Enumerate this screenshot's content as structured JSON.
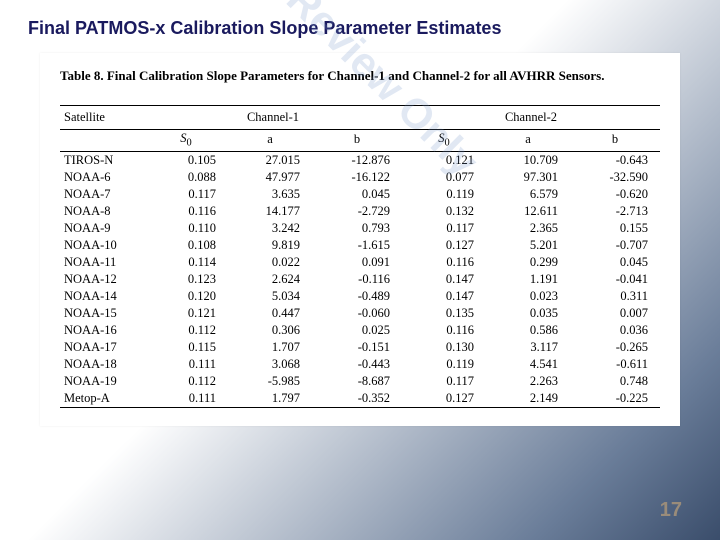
{
  "slide": {
    "title": "Final PATMOS-x Calibration Slope Parameter Estimates",
    "page_number": "17"
  },
  "watermark": {
    "text": "Peer Review Only"
  },
  "table": {
    "caption": "Table 8.  Final Calibration Slope Parameters for Channel-1 and Channel-2 for all AVHRR Sensors.",
    "header": {
      "satellite": "Satellite",
      "channel1": "Channel-1",
      "channel2": "Channel-2",
      "s0": "S",
      "s0_sub": "0",
      "a": "a",
      "b": "b"
    },
    "col_widths": [
      "14%",
      "14%",
      "14%",
      "15%",
      "14%",
      "14%",
      "15%"
    ],
    "rows": [
      {
        "sat": "TIROS-N",
        "c1": {
          "s0": "0.105",
          "a": "27.015",
          "b": "-12.876"
        },
        "c2": {
          "s0": "0.121",
          "a": "10.709",
          "b": "-0.643"
        }
      },
      {
        "sat": "NOAA-6",
        "c1": {
          "s0": "0.088",
          "a": "47.977",
          "b": "-16.122"
        },
        "c2": {
          "s0": "0.077",
          "a": "97.301",
          "b": "-32.590"
        }
      },
      {
        "sat": "NOAA-7",
        "c1": {
          "s0": "0.117",
          "a": "3.635",
          "b": "0.045"
        },
        "c2": {
          "s0": "0.119",
          "a": "6.579",
          "b": "-0.620"
        }
      },
      {
        "sat": "NOAA-8",
        "c1": {
          "s0": "0.116",
          "a": "14.177",
          "b": "-2.729"
        },
        "c2": {
          "s0": "0.132",
          "a": "12.611",
          "b": "-2.713"
        }
      },
      {
        "sat": "NOAA-9",
        "c1": {
          "s0": "0.110",
          "a": "3.242",
          "b": "0.793"
        },
        "c2": {
          "s0": "0.117",
          "a": "2.365",
          "b": "0.155"
        }
      },
      {
        "sat": "NOAA-10",
        "c1": {
          "s0": "0.108",
          "a": "9.819",
          "b": "-1.615"
        },
        "c2": {
          "s0": "0.127",
          "a": "5.201",
          "b": "-0.707"
        }
      },
      {
        "sat": "NOAA-11",
        "c1": {
          "s0": "0.114",
          "a": "0.022",
          "b": "0.091"
        },
        "c2": {
          "s0": "0.116",
          "a": "0.299",
          "b": "0.045"
        }
      },
      {
        "sat": "NOAA-12",
        "c1": {
          "s0": "0.123",
          "a": "2.624",
          "b": "-0.116"
        },
        "c2": {
          "s0": "0.147",
          "a": "1.191",
          "b": "-0.041"
        }
      },
      {
        "sat": "NOAA-14",
        "c1": {
          "s0": "0.120",
          "a": "5.034",
          "b": "-0.489"
        },
        "c2": {
          "s0": "0.147",
          "a": "0.023",
          "b": "0.311"
        }
      },
      {
        "sat": "NOAA-15",
        "c1": {
          "s0": "0.121",
          "a": "0.447",
          "b": "-0.060"
        },
        "c2": {
          "s0": "0.135",
          "a": "0.035",
          "b": "0.007"
        }
      },
      {
        "sat": "NOAA-16",
        "c1": {
          "s0": "0.112",
          "a": "0.306",
          "b": "0.025"
        },
        "c2": {
          "s0": "0.116",
          "a": "0.586",
          "b": "0.036"
        }
      },
      {
        "sat": "NOAA-17",
        "c1": {
          "s0": "0.115",
          "a": "1.707",
          "b": "-0.151"
        },
        "c2": {
          "s0": "0.130",
          "a": "3.117",
          "b": "-0.265"
        }
      },
      {
        "sat": "NOAA-18",
        "c1": {
          "s0": "0.111",
          "a": "3.068",
          "b": "-0.443"
        },
        "c2": {
          "s0": "0.119",
          "a": "4.541",
          "b": "-0.611"
        }
      },
      {
        "sat": "NOAA-19",
        "c1": {
          "s0": "0.112",
          "a": "-5.985",
          "b": "-8.687"
        },
        "c2": {
          "s0": "0.117",
          "a": "2.263",
          "b": "0.748"
        }
      },
      {
        "sat": "Metop-A",
        "c1": {
          "s0": "0.111",
          "a": "1.797",
          "b": "-0.352"
        },
        "c2": {
          "s0": "0.127",
          "a": "2.149",
          "b": "-0.225"
        }
      }
    ]
  }
}
